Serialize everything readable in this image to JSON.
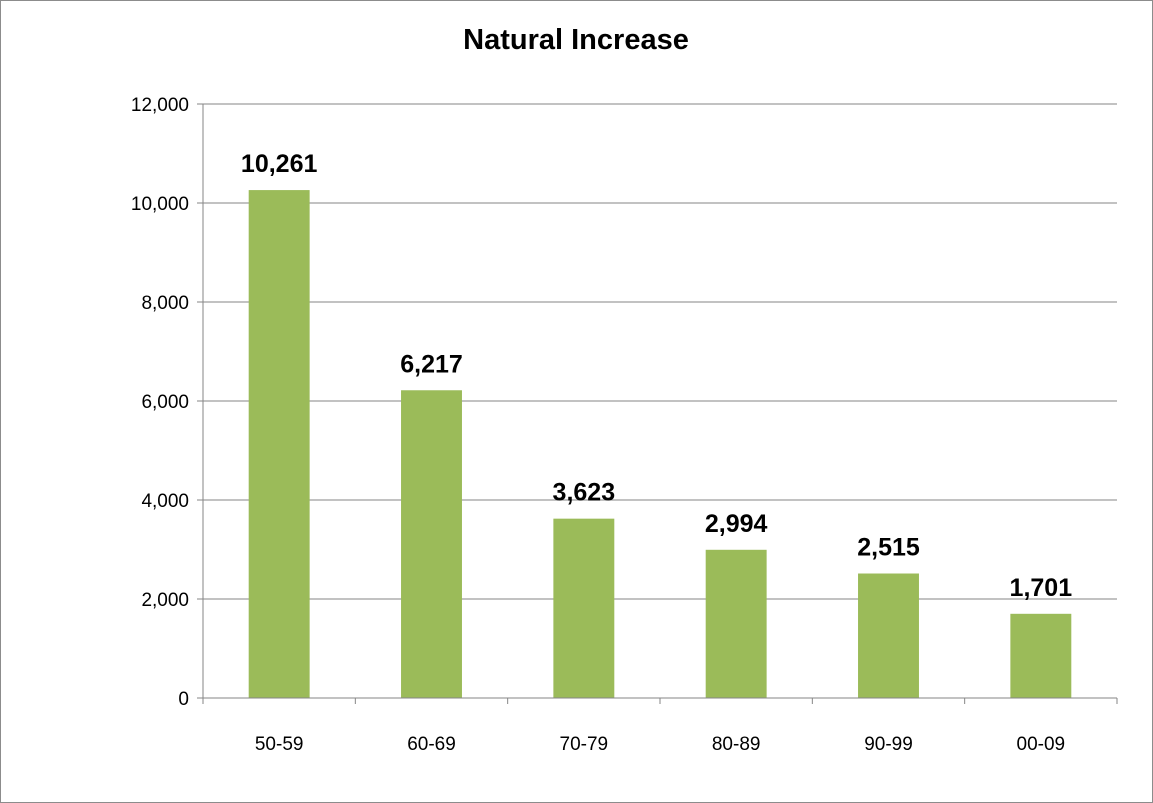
{
  "chart_data": {
    "type": "bar",
    "title": "Natural Increase",
    "categories": [
      "50-59",
      "60-69",
      "70-79",
      "80-89",
      "90-99",
      "00-09"
    ],
    "values": [
      10261,
      6217,
      3623,
      2994,
      2515,
      1701
    ],
    "data_labels": [
      "10,261",
      "6,217",
      "3,623",
      "2,994",
      "2,515",
      "1,701"
    ],
    "y_ticks": [
      0,
      2000,
      4000,
      6000,
      8000,
      10000,
      12000
    ],
    "y_tick_labels": [
      "0",
      "2,000",
      "4,000",
      "6,000",
      "8,000",
      "10,000",
      "12,000"
    ],
    "ylim": [
      0,
      12000
    ],
    "xlabel": "",
    "ylabel": "",
    "grid": true,
    "legend": "none",
    "bar_color": "#9BBB59"
  }
}
